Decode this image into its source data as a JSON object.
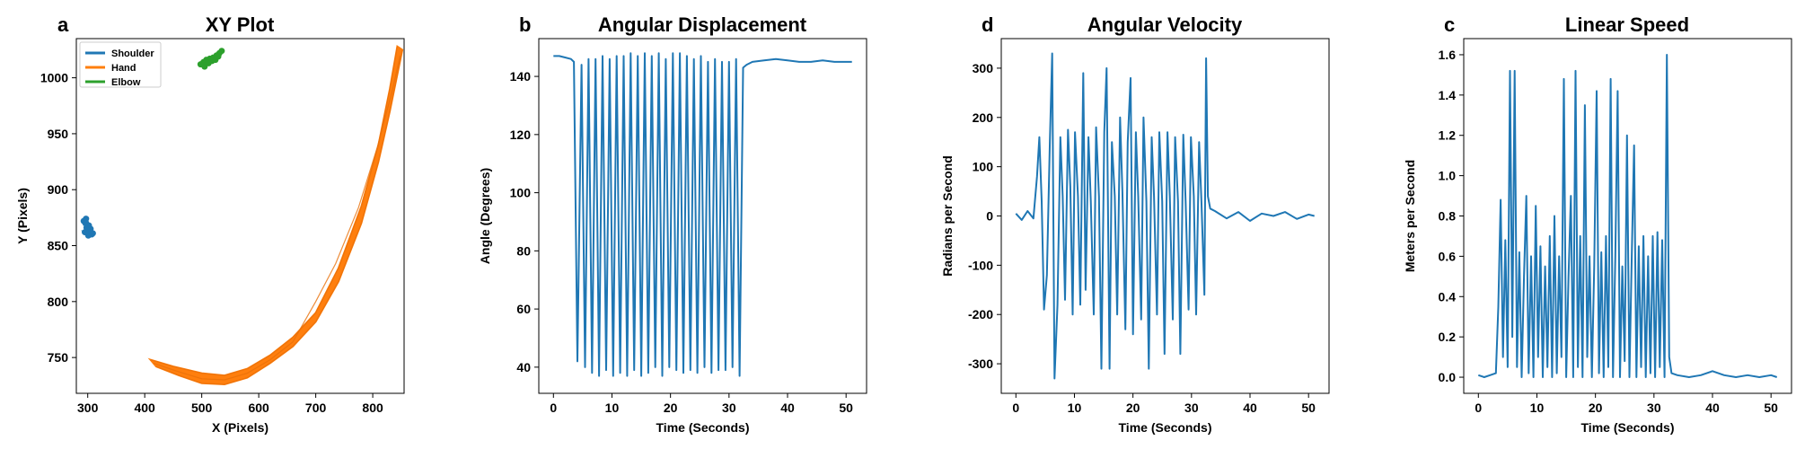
{
  "colors": {
    "blue": "#1f77b4",
    "orange": "#ff7f0e",
    "green": "#2ca02c"
  },
  "chart_data": [
    {
      "letter": "a",
      "type": "scatter",
      "title": "XY Plot",
      "xlabel": "X (Pixels)",
      "ylabel": "Y (Pixels)",
      "xlim": [
        280,
        855
      ],
      "ylim": [
        718,
        1035
      ],
      "xticks": [
        300,
        400,
        500,
        600,
        700,
        800
      ],
      "yticks": [
        750,
        800,
        850,
        900,
        950,
        1000
      ],
      "legend_position": "top-left",
      "series": [
        {
          "name": "Shoulder",
          "color": "#1f77b4",
          "kind": "cluster",
          "points": [
            [
              293,
              872
            ],
            [
              296,
              870
            ],
            [
              298,
              866
            ],
            [
              300,
              864
            ],
            [
              304,
              862
            ],
            [
              307,
              860
            ],
            [
              302,
              868
            ],
            [
              297,
              874
            ],
            [
              305,
              865
            ],
            [
              309,
              861
            ],
            [
              295,
              862
            ],
            [
              301,
              859
            ]
          ]
        },
        {
          "name": "Hand",
          "color": "#ff7f0e",
          "kind": "band",
          "upper": [
            [
              410,
              748
            ],
            [
              450,
              742
            ],
            [
              500,
              736
            ],
            [
              540,
              734
            ],
            [
              580,
              740
            ],
            [
              620,
              752
            ],
            [
              660,
              768
            ],
            [
              700,
              790
            ],
            [
              740,
              830
            ],
            [
              780,
              885
            ],
            [
              810,
              940
            ],
            [
              830,
              990
            ],
            [
              843,
              1028
            ]
          ],
          "lower": [
            [
              420,
              742
            ],
            [
              460,
              734
            ],
            [
              500,
              727
            ],
            [
              540,
              726
            ],
            [
              580,
              732
            ],
            [
              620,
              745
            ],
            [
              660,
              760
            ],
            [
              700,
              782
            ],
            [
              740,
              818
            ],
            [
              780,
              870
            ],
            [
              810,
              925
            ],
            [
              830,
              970
            ],
            [
              852,
              1025
            ]
          ],
          "inner": [
            [
              415,
              745
            ],
            [
              455,
              738
            ],
            [
              500,
              731
            ],
            [
              540,
              730
            ],
            [
              580,
              736
            ],
            [
              620,
              748
            ],
            [
              660,
              764
            ],
            [
              700,
              800
            ],
            [
              735,
              834
            ],
            [
              775,
              884
            ],
            [
              808,
              938
            ],
            [
              835,
              990
            ],
            [
              848,
              1020
            ]
          ]
        },
        {
          "name": "Elbow",
          "color": "#2ca02c",
          "kind": "cluster",
          "points": [
            [
              498,
              1012
            ],
            [
              503,
              1014
            ],
            [
              508,
              1016
            ],
            [
              514,
              1017
            ],
            [
              520,
              1018
            ],
            [
              526,
              1020
            ],
            [
              531,
              1022
            ],
            [
              535,
              1024
            ],
            [
              505,
              1010
            ],
            [
              512,
              1013
            ],
            [
              518,
              1015
            ],
            [
              524,
              1016
            ],
            [
              529,
              1019
            ]
          ]
        }
      ]
    },
    {
      "letter": "b",
      "type": "line",
      "title": "Angular Displacement",
      "xlabel": "Time (Seconds)",
      "ylabel": "Angle (Degrees)",
      "xlim": [
        -2.5,
        53.5
      ],
      "ylim": [
        31,
        153
      ],
      "xticks": [
        0,
        10,
        20,
        30,
        40,
        50
      ],
      "yticks": [
        40,
        60,
        80,
        100,
        120,
        140
      ],
      "color": "#1f77b4",
      "x": [
        0,
        1,
        2,
        3,
        3.5,
        4.1,
        4.8,
        5.4,
        6.0,
        6.6,
        7.2,
        7.8,
        8.4,
        9.0,
        9.6,
        10.2,
        10.8,
        11.4,
        12.0,
        12.6,
        13.2,
        13.8,
        14.4,
        15.0,
        15.6,
        16.2,
        16.8,
        17.4,
        18.0,
        18.6,
        19.2,
        19.8,
        20.4,
        21.0,
        21.6,
        22.2,
        22.8,
        23.4,
        24.0,
        24.6,
        25.2,
        25.8,
        26.4,
        27.0,
        27.6,
        28.2,
        28.8,
        29.4,
        30.0,
        30.6,
        31.2,
        31.8,
        32.4,
        33.0,
        34,
        36,
        38,
        40,
        42,
        44,
        46,
        48,
        50,
        51
      ],
      "y": [
        147,
        147,
        146.5,
        146,
        145,
        42,
        144,
        40,
        146,
        38,
        146,
        37,
        147,
        39,
        146,
        37,
        147,
        38,
        147,
        37,
        148,
        39,
        147,
        37,
        148,
        38,
        147,
        40,
        148,
        37,
        146,
        40,
        148,
        39,
        148,
        38,
        147,
        39,
        146,
        38,
        147,
        40,
        145,
        38,
        146,
        39,
        145,
        39,
        145,
        40,
        146,
        37,
        143,
        144,
        145,
        145.5,
        146,
        145.5,
        145,
        145,
        145.5,
        145,
        145,
        145
      ]
    },
    {
      "letter": "d",
      "type": "line",
      "title": "Angular Velocity",
      "xlabel": "Time (Seconds)",
      "ylabel": "Radians per Second",
      "xlim": [
        -2.5,
        53.5
      ],
      "ylim": [
        -360,
        360
      ],
      "xticks": [
        0,
        10,
        20,
        30,
        40,
        50
      ],
      "yticks": [
        -300,
        -200,
        -100,
        0,
        100,
        200,
        300
      ],
      "color": "#1f77b4",
      "x": [
        0,
        1,
        2,
        3,
        3.6,
        4.0,
        4.4,
        4.8,
        5.3,
        5.8,
        6.2,
        6.6,
        7.1,
        7.6,
        8.0,
        8.4,
        8.9,
        9.3,
        9.7,
        10.1,
        10.6,
        11.0,
        11.5,
        11.9,
        12.4,
        12.8,
        13.3,
        13.7,
        14.2,
        14.6,
        15.1,
        15.5,
        16.0,
        16.4,
        16.9,
        17.3,
        17.8,
        18.2,
        18.7,
        19.1,
        19.6,
        20.0,
        20.5,
        20.9,
        21.4,
        21.8,
        22.3,
        22.7,
        23.2,
        23.6,
        24.1,
        24.5,
        25.0,
        25.4,
        25.9,
        26.3,
        26.8,
        27.2,
        27.7,
        28.1,
        28.6,
        29.0,
        29.5,
        29.9,
        30.4,
        30.8,
        31.3,
        31.7,
        32.2,
        32.5,
        32.8,
        33.2,
        34,
        36,
        38,
        40,
        42,
        44,
        46,
        48,
        50,
        51
      ],
      "y": [
        5,
        -8,
        10,
        -5,
        80,
        160,
        30,
        -190,
        -120,
        150,
        330,
        -330,
        -180,
        160,
        40,
        -170,
        175,
        60,
        -200,
        170,
        40,
        -180,
        290,
        -150,
        160,
        30,
        -200,
        180,
        40,
        -310,
        170,
        300,
        -310,
        150,
        40,
        -200,
        200,
        50,
        -230,
        150,
        280,
        -240,
        170,
        40,
        -210,
        200,
        30,
        -310,
        160,
        40,
        -200,
        170,
        30,
        -280,
        170,
        40,
        -210,
        160,
        30,
        -280,
        165,
        30,
        -190,
        160,
        40,
        -200,
        150,
        30,
        -160,
        320,
        40,
        15,
        10,
        -5,
        8,
        -10,
        5,
        0,
        8,
        -6,
        3,
        0
      ]
    },
    {
      "letter": "c",
      "type": "line",
      "title": "Linear Speed",
      "xlabel": "Time (Seconds)",
      "ylabel": "Meters per Second",
      "xlim": [
        -2.5,
        53.5
      ],
      "ylim": [
        -0.08,
        1.68
      ],
      "xticks": [
        0,
        10,
        20,
        30,
        40,
        50
      ],
      "yticks": [
        0.0,
        0.2,
        0.4,
        0.6,
        0.8,
        1.0,
        1.2,
        1.4,
        1.6
      ],
      "color": "#1f77b4",
      "x": [
        0,
        1,
        2,
        3,
        3.4,
        3.8,
        4.2,
        4.6,
        5.0,
        5.4,
        5.8,
        6.2,
        6.6,
        7.0,
        7.4,
        7.8,
        8.2,
        8.6,
        9.0,
        9.4,
        9.8,
        10.2,
        10.6,
        11.0,
        11.4,
        11.8,
        12.2,
        12.6,
        13.0,
        13.4,
        13.8,
        14.2,
        14.6,
        15.0,
        15.4,
        15.8,
        16.2,
        16.6,
        17.0,
        17.4,
        17.8,
        18.2,
        18.6,
        19.0,
        19.4,
        19.8,
        20.2,
        20.6,
        21.0,
        21.4,
        21.8,
        22.2,
        22.6,
        23.0,
        23.4,
        23.8,
        24.2,
        24.6,
        25.0,
        25.4,
        25.8,
        26.2,
        26.6,
        27.0,
        27.4,
        27.8,
        28.2,
        28.6,
        29.0,
        29.4,
        29.8,
        30.2,
        30.6,
        31.0,
        31.4,
        31.8,
        32.2,
        32.6,
        33.0,
        34,
        36,
        38,
        40,
        42,
        44,
        46,
        48,
        50,
        51
      ],
      "y": [
        0.01,
        0.0,
        0.01,
        0.02,
        0.35,
        0.88,
        0.1,
        0.68,
        0.05,
        1.52,
        0.2,
        1.52,
        0.05,
        0.62,
        0.0,
        0.5,
        0.9,
        0.02,
        0.6,
        0.0,
        0.85,
        0.1,
        0.65,
        0.0,
        0.55,
        0.05,
        0.7,
        0.0,
        0.8,
        0.02,
        0.6,
        0.1,
        1.48,
        0.0,
        0.5,
        0.9,
        0.0,
        1.52,
        0.05,
        0.7,
        0.0,
        1.35,
        0.1,
        0.6,
        0.0,
        0.55,
        1.42,
        0.02,
        0.62,
        0.0,
        0.7,
        0.05,
        1.48,
        0.0,
        0.6,
        1.42,
        0.0,
        0.55,
        0.08,
        1.2,
        0.0,
        0.6,
        1.15,
        0.0,
        0.65,
        0.05,
        0.7,
        0.0,
        0.6,
        0.02,
        0.7,
        0.0,
        0.72,
        0.05,
        0.68,
        0.0,
        1.6,
        0.1,
        0.02,
        0.01,
        0.0,
        0.01,
        0.03,
        0.01,
        0.0,
        0.01,
        0.0,
        0.01,
        0.0
      ]
    }
  ]
}
